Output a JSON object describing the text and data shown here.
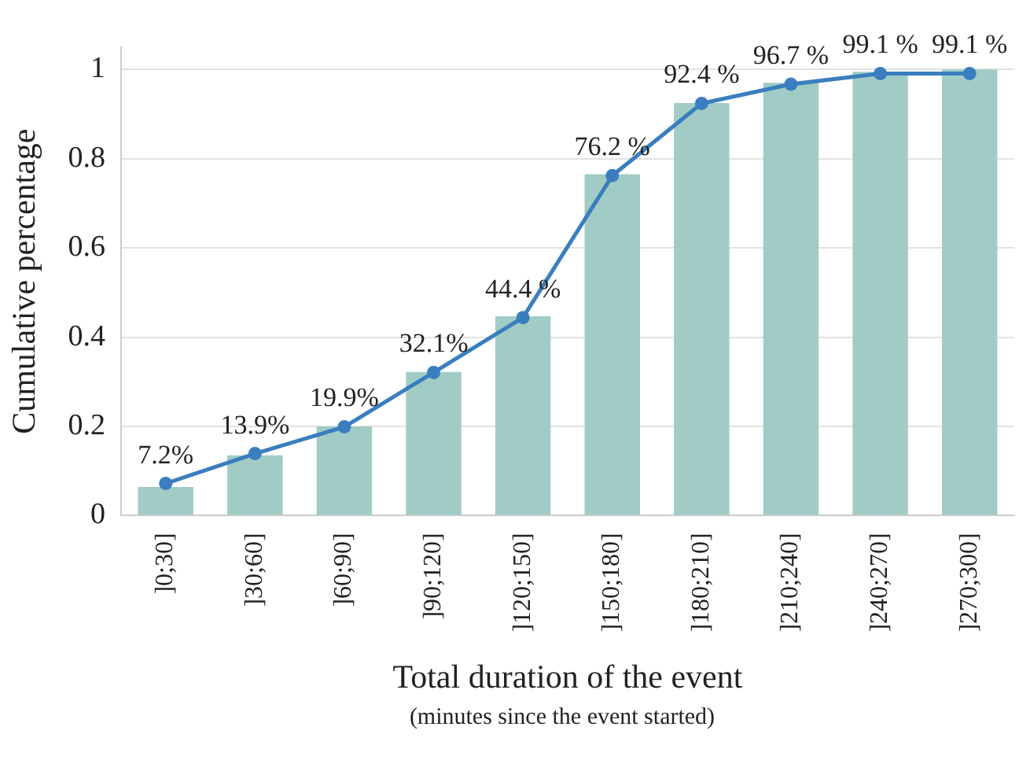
{
  "chart_data": {
    "type": "bar",
    "xlabel": "Total duration of the event",
    "ylabel": "Cumulative percentage",
    "annotations": [
      "(minutes since the event started)"
    ],
    "categories": [
      "]0;30]",
      "]30;60]",
      "]60;90]",
      "]90;120]",
      "]120;150]",
      "]150;180]",
      "]180;210]",
      "]210;240]",
      "]240;270]",
      "]270;300]"
    ],
    "series": [
      {
        "color": "#a0ccc5",
        "values": [
          0.064,
          0.135,
          0.2,
          0.322,
          0.447,
          0.765,
          0.925,
          0.97,
          0.995,
          1.0
        ]
      },
      {
        "type": "line",
        "color": "#3a7ebf",
        "values": [
          0.072,
          0.139,
          0.199,
          0.321,
          0.444,
          0.762,
          0.924,
          0.967,
          0.991,
          0.991
        ],
        "value_labels": [
          "7.2%",
          "13.9%",
          "19.9%",
          "32.1%",
          "44.4 %",
          "76.2 %",
          "92.4 %",
          "96.7 %",
          "99.1 %",
          "99.1 %"
        ]
      }
    ],
    "ylim": [
      0,
      1.05
    ],
    "yticks": [
      0,
      0.2,
      0.4,
      0.6,
      0.8,
      1
    ],
    "grid": "y",
    "marker": "circle",
    "line_style": "solid",
    "legend": false
  }
}
